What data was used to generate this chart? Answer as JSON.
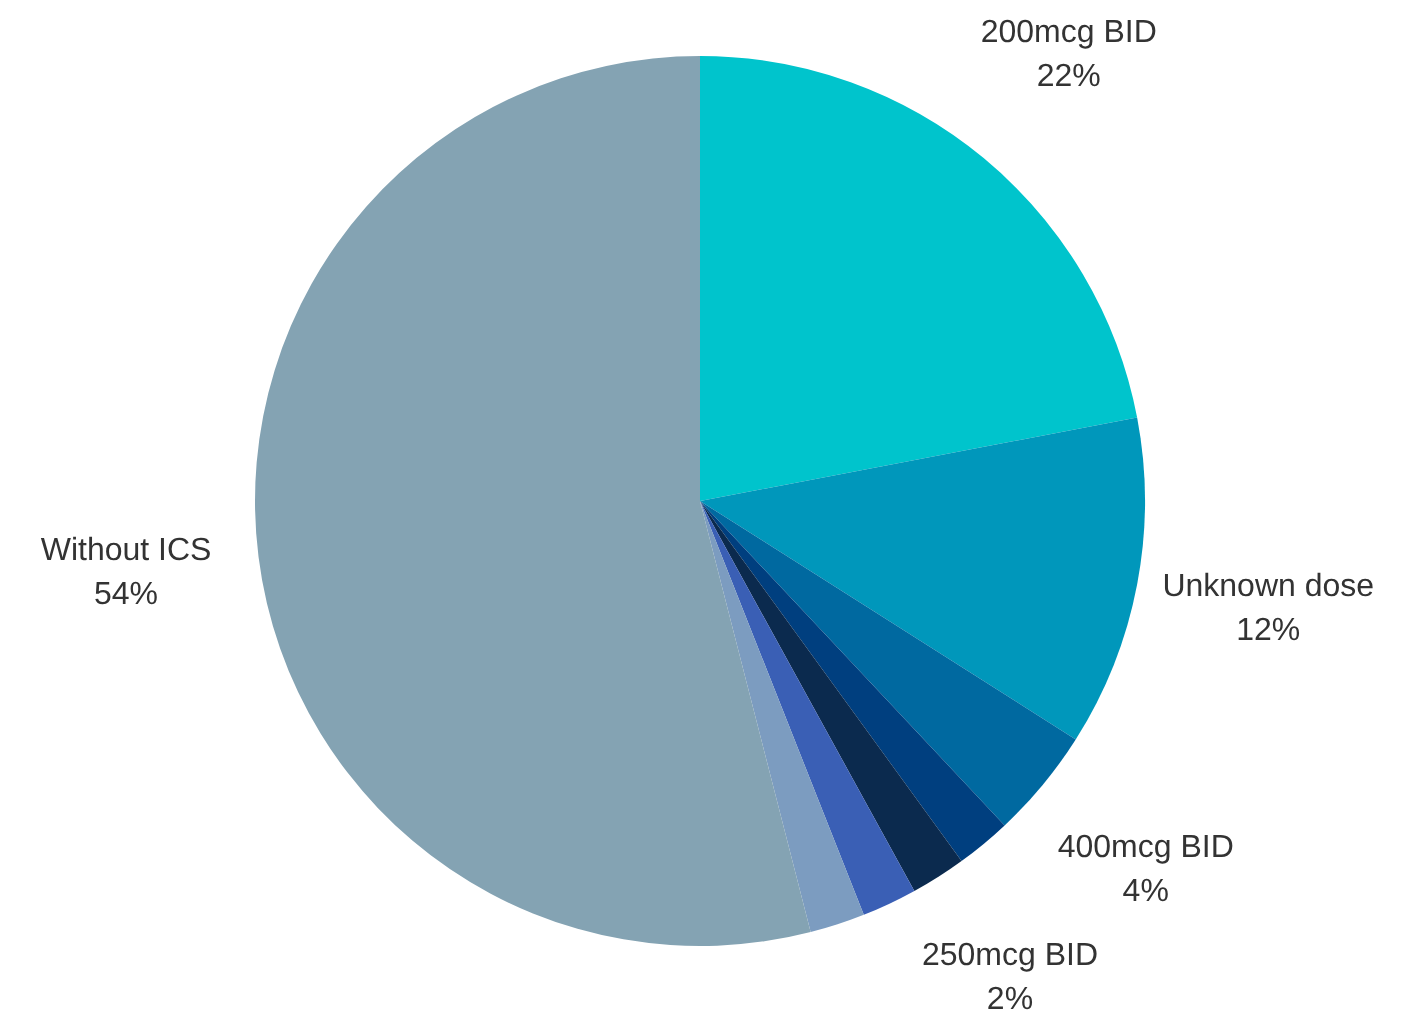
{
  "chart_data": {
    "type": "pie",
    "categories": [
      "200mcg BID",
      "Unknown dose",
      "400mcg BID",
      null,
      "250mcg BID",
      null,
      null,
      "Without ICS"
    ],
    "values": [
      22,
      12,
      4,
      2,
      2,
      2,
      2,
      54
    ],
    "value_labels": [
      "22%",
      "12%",
      "4%",
      null,
      "2%",
      null,
      null,
      "54%"
    ],
    "colors": [
      "#00c4cc",
      "#0097bb",
      "#0069a0",
      "#003f7f",
      "#0b2a4e",
      "#3a5fb5",
      "#7c9cc0",
      "#84a3b3"
    ],
    "legend": false
  }
}
